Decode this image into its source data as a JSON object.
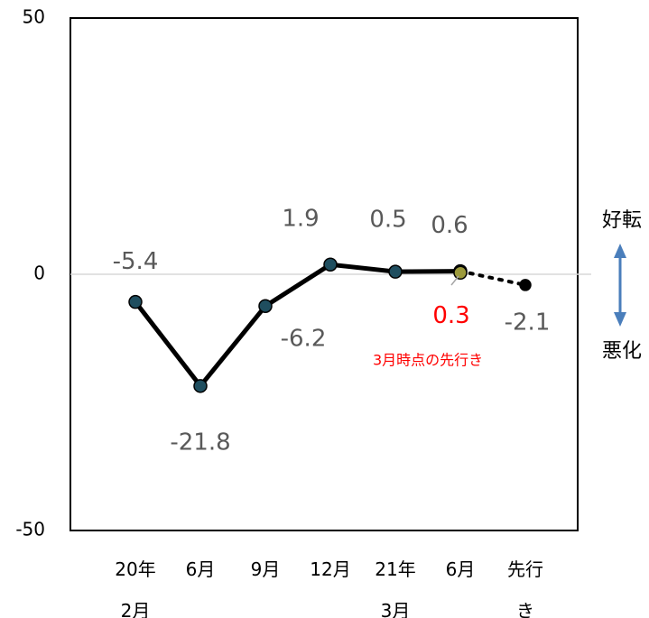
{
  "chart_data": {
    "type": "line",
    "categories": [
      "20年2月",
      "6月",
      "9月",
      "12月",
      "21年3月",
      "6月",
      "先行き"
    ],
    "series": [
      {
        "color": "#000000",
        "marker_color": "#1f4e5f",
        "style": "solid",
        "values": [
          -5.4,
          -21.8,
          -6.2,
          1.9,
          0.5,
          0.6,
          null
        ]
      },
      {
        "color": "#000000",
        "marker_color": "#000000",
        "style": "dotted",
        "values": [
          null,
          null,
          null,
          null,
          null,
          0.6,
          -2.1
        ]
      },
      {
        "color": "#ff0000",
        "marker_color": "#9c9a3c",
        "style": "point",
        "values": [
          null,
          null,
          null,
          null,
          null,
          0.3,
          null
        ]
      }
    ],
    "ylim": [
      -50,
      50
    ],
    "yticks": [
      -50,
      0,
      50
    ],
    "annotations": [
      "3月時点の先行き",
      "好転",
      "悪化"
    ]
  }
}
